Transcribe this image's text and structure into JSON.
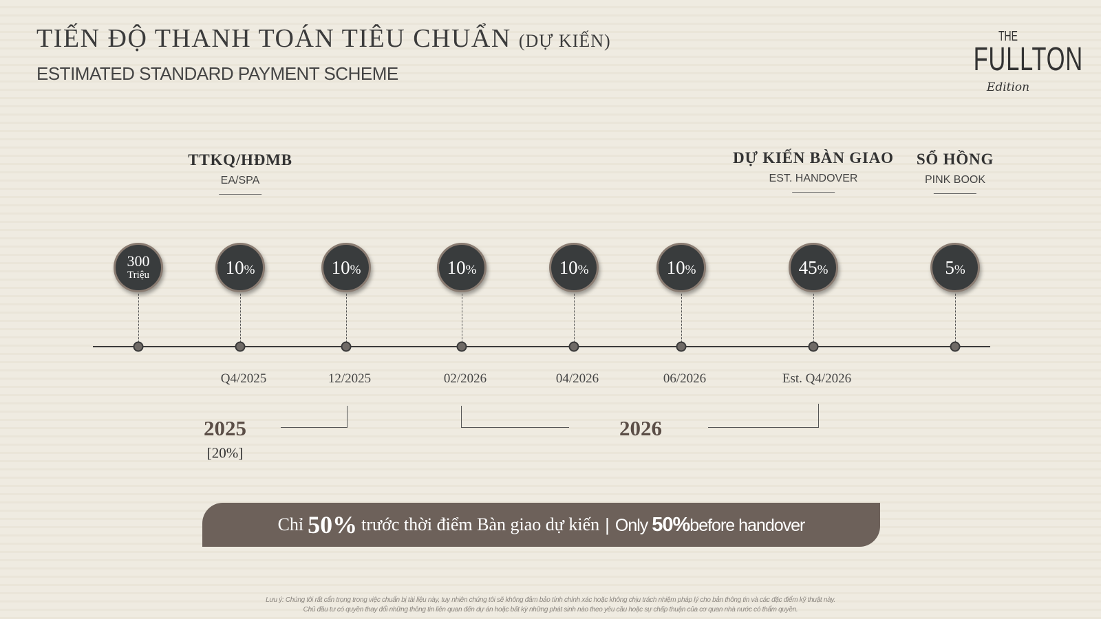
{
  "header": {
    "title": "TIẾN ĐỘ THANH TOÁN TIÊU CHUẨN",
    "title_suffix": "(DỰ KIẾN)",
    "subtitle": "ESTIMATED STANDARD PAYMENT SCHEME"
  },
  "logo": {
    "the": "THE",
    "name": "FULLTON",
    "edition": "Edition"
  },
  "milestones": [
    {
      "vn": "TTKQ/HĐMB",
      "en": "EA/SPA"
    },
    {
      "vn": "DỰ KIẾN BÀN GIAO",
      "en": "EST. HANDOVER"
    },
    {
      "vn": "SỔ HỒNG",
      "en": "PINK BOOK"
    }
  ],
  "deposit": {
    "amount": "300",
    "unit": "Triệu"
  },
  "payments": [
    {
      "value": "10",
      "pct": "%",
      "date": "Q4/2025"
    },
    {
      "value": "10",
      "pct": "%",
      "date": "12/2025"
    },
    {
      "value": "10",
      "pct": "%",
      "date": "02/2026"
    },
    {
      "value": "10",
      "pct": "%",
      "date": "04/2026"
    },
    {
      "value": "10",
      "pct": "%",
      "date": "06/2026"
    },
    {
      "value": "45",
      "pct": "%",
      "date": "Est. Q4/2026"
    },
    {
      "value": "5",
      "pct": "%",
      "date": ""
    }
  ],
  "years": {
    "y2025": "2025",
    "y2025_total": "[20%]",
    "y2026": "2026"
  },
  "banner": {
    "vn_pre": "Chỉ",
    "vn_big": "50%",
    "vn_post": "trước thời điểm Bàn giao dự kiến",
    "sep": "|",
    "en_pre": "Only",
    "en_big": "50%",
    "en_post": "before handover"
  },
  "notes": [
    "Lưu ý: Chúng tôi rất cẩn trọng trong việc chuẩn bị tài liệu này, tuy nhiên chúng tôi sẽ không đảm bảo tính chính xác hoặc không chịu trách nhiệm pháp lý cho bản thông tin và các đặc điểm kỹ thuật này.",
    "Chủ đầu tư có quyền thay đổi những thông tin liên quan đến dự án hoặc bất kỳ những phát sinh nào theo yêu cầu hoặc sự chấp thuận của cơ quan nhà nước có thẩm quyền."
  ],
  "colors": {
    "circle": "#393c3d",
    "banner": "#6d615a",
    "year": "#5b4e47"
  }
}
